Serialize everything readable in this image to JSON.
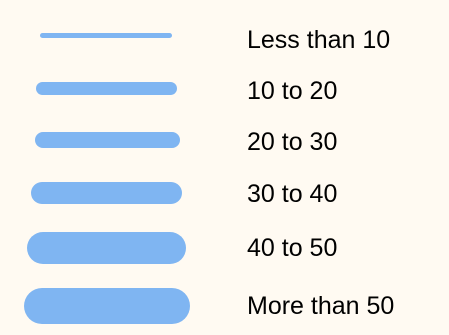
{
  "legend": {
    "swatch_color": "#7fb5f2",
    "items": [
      {
        "label": "Less than 10"
      },
      {
        "label": "10 to 20"
      },
      {
        "label": "20 to 30"
      },
      {
        "label": "30 to 40"
      },
      {
        "label": "40 to 50"
      },
      {
        "label": "More than 50"
      }
    ]
  }
}
